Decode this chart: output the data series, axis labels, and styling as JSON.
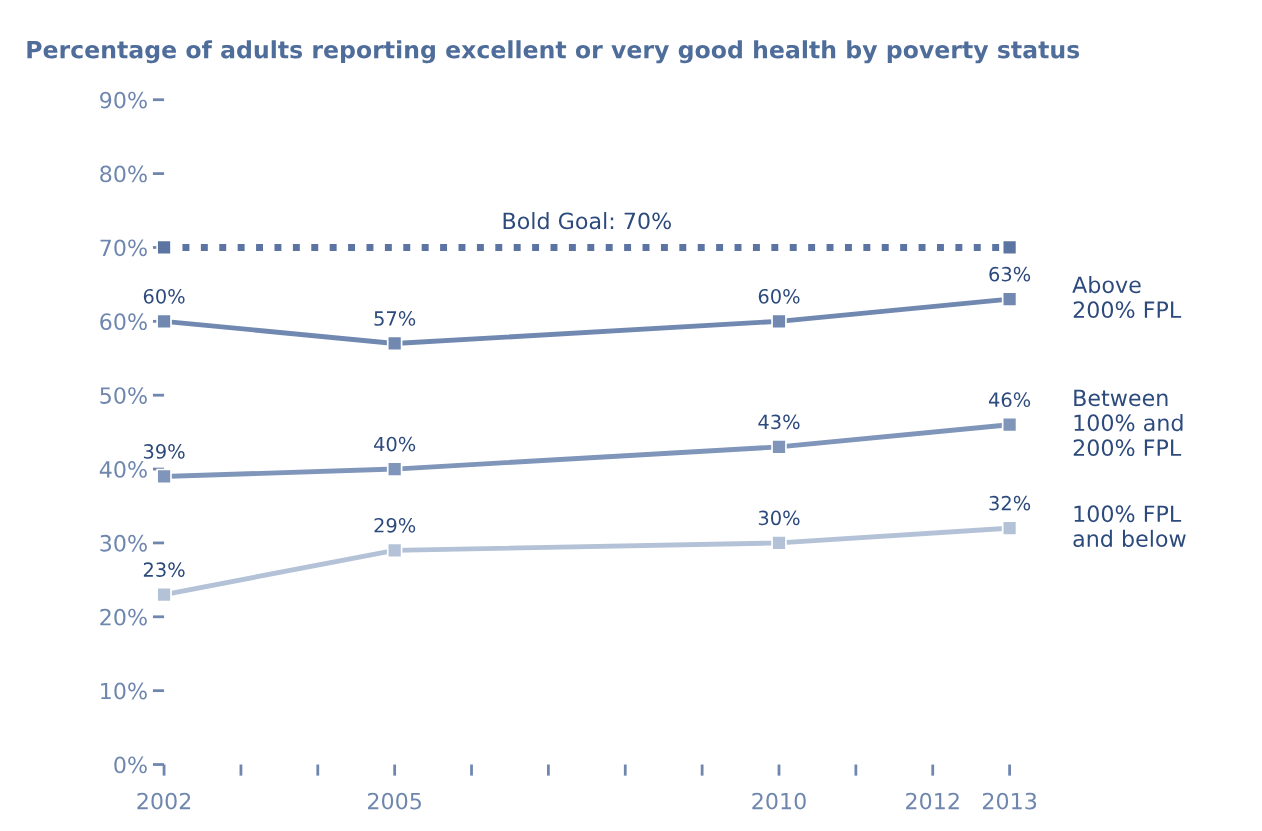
{
  "chart_data": {
    "type": "line",
    "title": "Percentage of adults reporting excellent or very good health by poverty status",
    "x": [
      2002,
      2005,
      2010,
      2013
    ],
    "series": [
      {
        "name": "Bold Goal: 70%",
        "color": "#5b74a2",
        "x": [
          2002,
          2013
        ],
        "values": [
          70,
          70
        ],
        "line_style": "dotted"
      },
      {
        "name": "Above\n200% FPL",
        "color": "#7189b1",
        "values": [
          60,
          57,
          60,
          63
        ],
        "value_labels": [
          "60%",
          "57%",
          "60%",
          "63%"
        ]
      },
      {
        "name": "Between\n100% and\n200% FPL",
        "color": "#7f95b9",
        "values": [
          39,
          40,
          43,
          46
        ],
        "value_labels": [
          "39%",
          "40%",
          "43%",
          "46%"
        ]
      },
      {
        "name": "100% FPL\nand below",
        "color": "#b4c2d7",
        "values": [
          23,
          29,
          30,
          32
        ],
        "value_labels": [
          "23%",
          "29%",
          "30%",
          "32%"
        ]
      }
    ],
    "xlim": [
      2002,
      2013
    ],
    "xticks": [
      2002,
      {
        "value": 2003,
        "label": null
      },
      {
        "value": 2004,
        "label": null
      },
      2005,
      {
        "value": 2006,
        "label": null
      },
      {
        "value": 2007,
        "label": null
      },
      {
        "value": 2008,
        "label": null
      },
      {
        "value": 2009,
        "label": null
      },
      2010,
      {
        "value": 2011,
        "label": null
      },
      2012,
      2013
    ],
    "ylim": [
      0,
      90
    ],
    "yticks": [
      {
        "value": 0,
        "label": "0%"
      },
      {
        "value": 10,
        "label": "10%"
      },
      {
        "value": 20,
        "label": "20%"
      },
      {
        "value": 30,
        "label": "30%"
      },
      {
        "value": 40,
        "label": "40%"
      },
      {
        "value": 50,
        "label": "50%"
      },
      {
        "value": 60,
        "label": "60%"
      },
      {
        "value": 70,
        "label": "70%"
      },
      {
        "value": 80,
        "label": "80%"
      },
      {
        "value": 90,
        "label": "90%"
      }
    ],
    "marker": "square",
    "line_style": "solid",
    "grid": false,
    "legend": false
  }
}
